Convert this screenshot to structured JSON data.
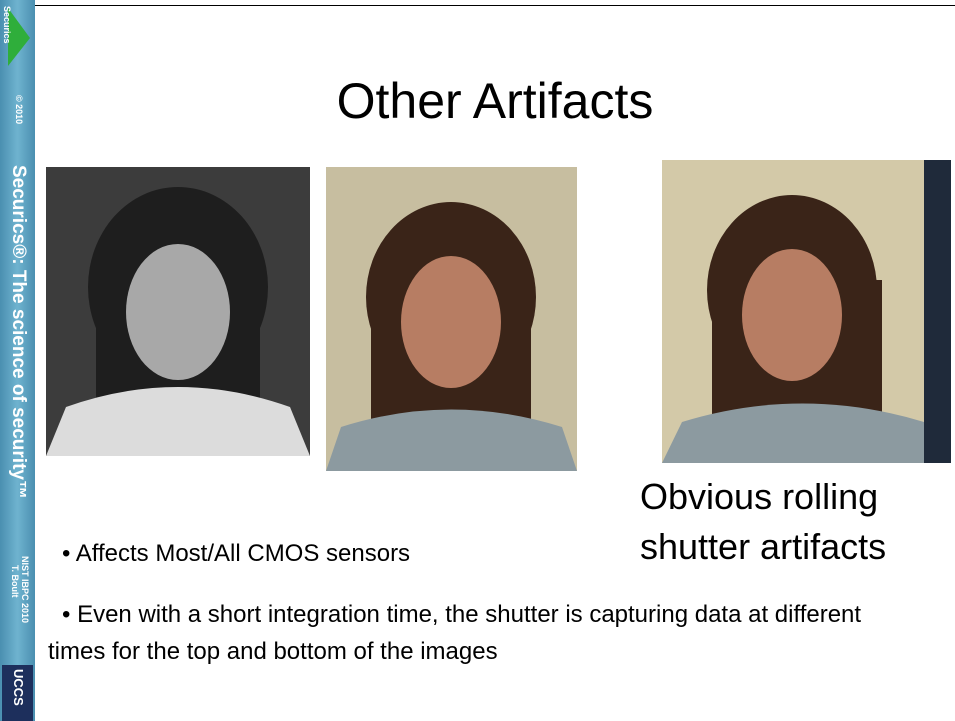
{
  "sidebar": {
    "logo": "Securics",
    "copyright": "© 2010",
    "tagline": "Securics®: The science of security™",
    "event": [
      "NIST IBPC 2010",
      "T. Boult"
    ],
    "university": "UCCS"
  },
  "title": "Other Artifacts",
  "caption": [
    "Obvious rolling",
    "shutter artifacts"
  ],
  "bullets": [
    "• Affects Most/All CMOS sensors",
    "• Even with a short integration time, the shutter is capturing data at different times for the top and bottom of the images"
  ]
}
